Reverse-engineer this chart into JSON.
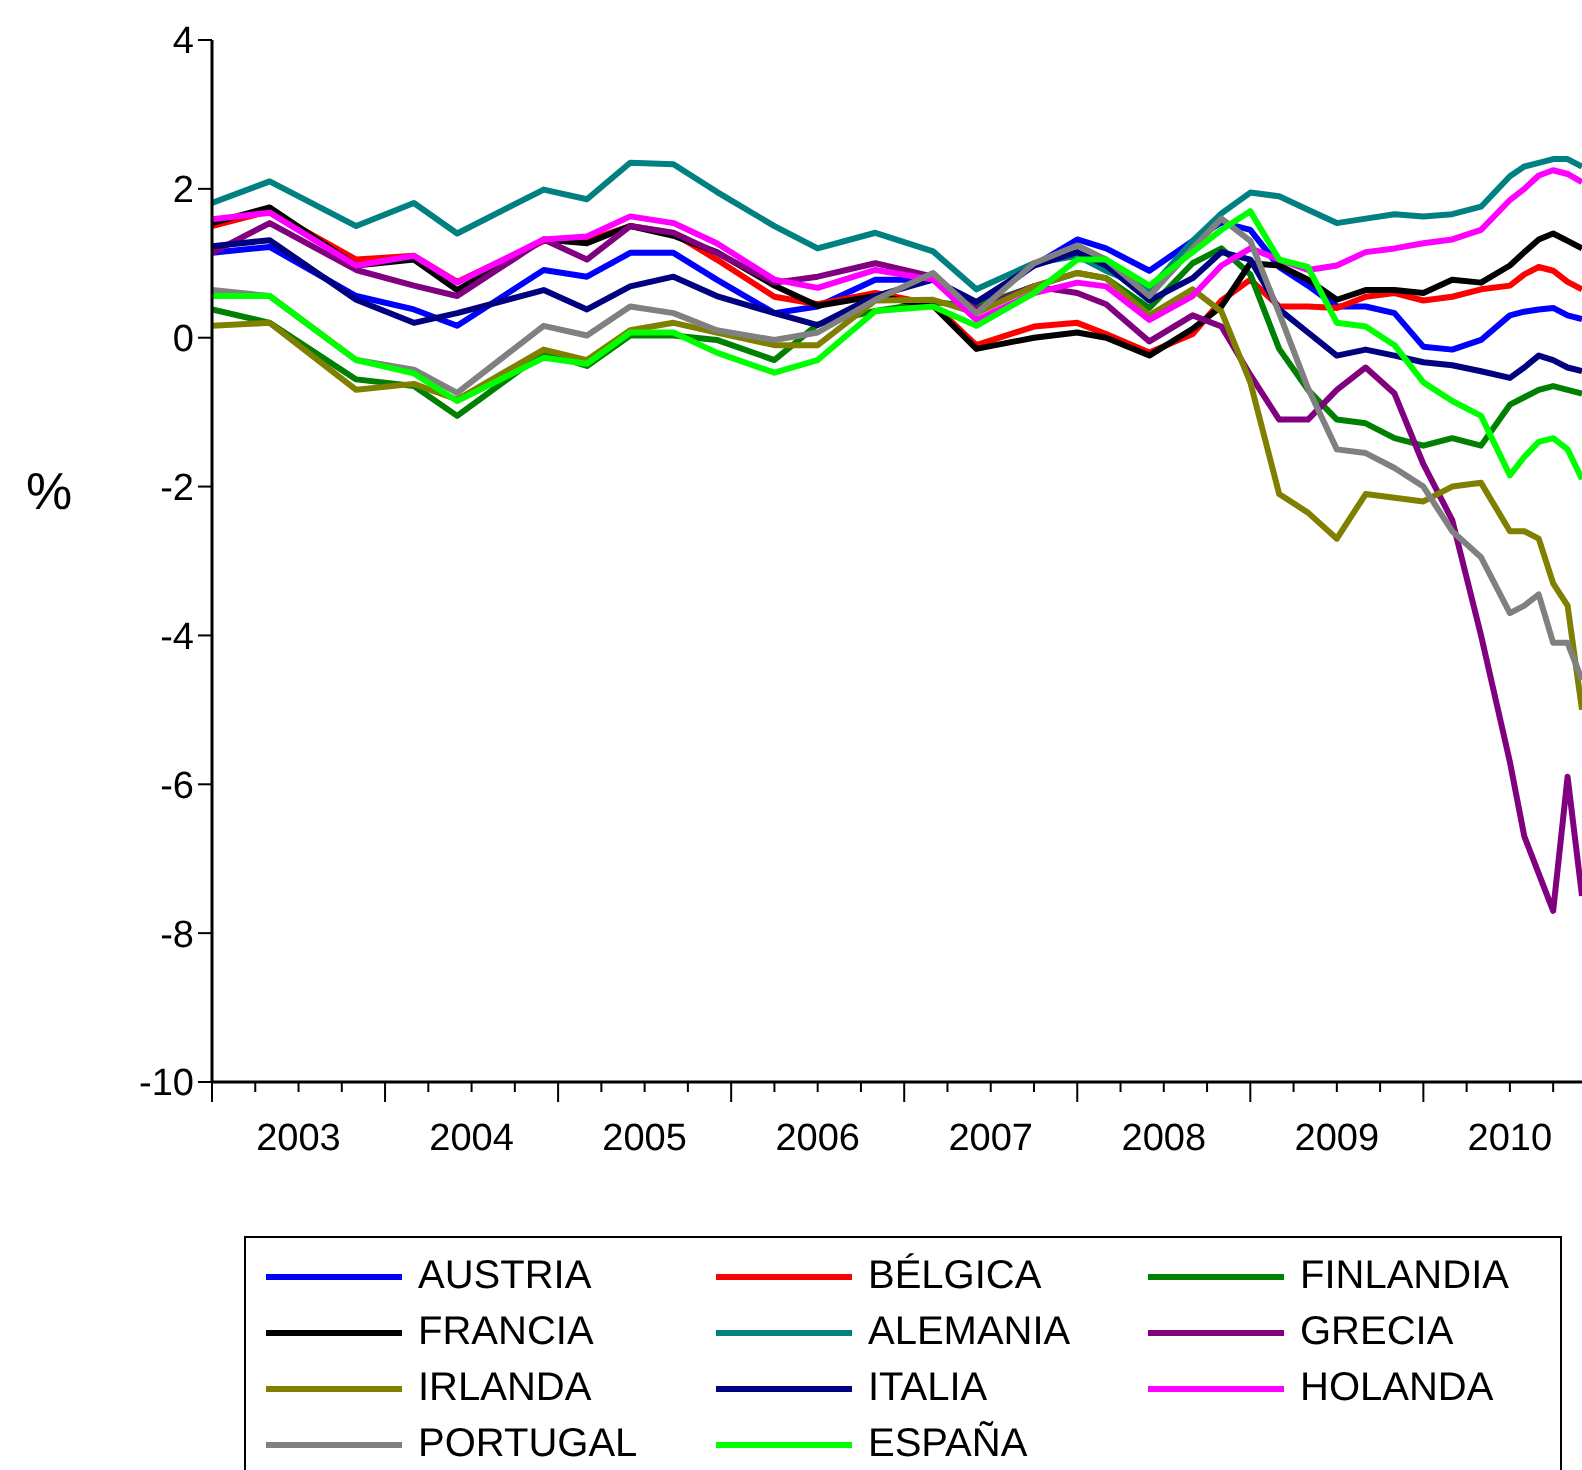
{
  "chart_data": {
    "type": "line",
    "ylabel": "%",
    "x": [
      "2003-01",
      "2003-05",
      "2003-11",
      "2004-03",
      "2004-06",
      "2004-12",
      "2005-03",
      "2005-06",
      "2005-09",
      "2005-12",
      "2006-04",
      "2006-07",
      "2006-11",
      "2007-03",
      "2007-06",
      "2007-10",
      "2008-01",
      "2008-03",
      "2008-06",
      "2008-09",
      "2008-11",
      "2009-01",
      "2009-03",
      "2009-05",
      "2009-07",
      "2009-09",
      "2009-11",
      "2010-01",
      "2010-03",
      "2010-05",
      "2010-07",
      "2010-08",
      "2010-09",
      "2010-10",
      "2010-11",
      "2010-12"
    ],
    "series": [
      {
        "name": "AUSTRIA",
        "color": "#0000ff",
        "values": [
          1.14,
          1.22,
          0.56,
          0.38,
          0.16,
          0.91,
          0.82,
          1.14,
          1.14,
          0.78,
          0.33,
          0.42,
          0.78,
          0.78,
          0.42,
          0.97,
          1.32,
          1.2,
          0.9,
          1.3,
          1.55,
          1.45,
          0.95,
          0.7,
          0.42,
          0.42,
          0.33,
          -0.12,
          -0.16,
          -0.03,
          0.3,
          0.35,
          0.38,
          0.4,
          0.3,
          0.25
        ]
      },
      {
        "name": "BÉLGICA",
        "color": "#ff0000",
        "values": [
          1.5,
          1.7,
          1.05,
          1.1,
          0.75,
          1.3,
          1.3,
          1.5,
          1.4,
          1.05,
          0.55,
          0.45,
          0.6,
          0.45,
          -0.1,
          0.15,
          0.2,
          0.05,
          -0.2,
          0.05,
          0.5,
          0.78,
          0.42,
          0.42,
          0.4,
          0.55,
          0.6,
          0.5,
          0.55,
          0.65,
          0.7,
          0.85,
          0.95,
          0.9,
          0.75,
          0.65
        ]
      },
      {
        "name": "FINLANDIA",
        "color": "#008000",
        "values": [
          0.38,
          0.2,
          -0.56,
          -0.65,
          -1.05,
          -0.2,
          -0.38,
          0.03,
          0.03,
          -0.03,
          -0.3,
          0.18,
          0.36,
          0.48,
          0.42,
          0.69,
          0.87,
          0.8,
          0.4,
          1.0,
          1.2,
          0.85,
          -0.15,
          -0.7,
          -1.1,
          -1.15,
          -1.35,
          -1.45,
          -1.35,
          -1.45,
          -0.9,
          -0.8,
          -0.7,
          -0.65,
          -0.7,
          -0.75
        ]
      },
      {
        "name": "FRANCIA",
        "color": "#000000",
        "values": [
          1.54,
          1.75,
          0.97,
          1.05,
          0.64,
          1.32,
          1.27,
          1.5,
          1.37,
          1.15,
          0.7,
          0.43,
          0.56,
          0.43,
          -0.15,
          0.0,
          0.07,
          0.0,
          -0.24,
          0.12,
          0.42,
          1.0,
          0.97,
          0.78,
          0.51,
          0.64,
          0.64,
          0.6,
          0.78,
          0.74,
          0.97,
          1.15,
          1.32,
          1.4,
          1.3,
          1.2
        ]
      },
      {
        "name": "ALEMANIA",
        "color": "#008080",
        "values": [
          1.81,
          2.1,
          1.5,
          1.81,
          1.4,
          1.99,
          1.86,
          2.35,
          2.33,
          1.96,
          1.5,
          1.2,
          1.41,
          1.16,
          0.65,
          1.0,
          1.1,
          0.9,
          0.65,
          1.3,
          1.67,
          1.95,
          1.9,
          1.72,
          1.54,
          1.6,
          1.66,
          1.63,
          1.66,
          1.76,
          2.17,
          2.3,
          2.35,
          2.4,
          2.4,
          2.3
        ]
      },
      {
        "name": "GRECIA",
        "color": "#800080",
        "values": [
          1.14,
          1.54,
          0.91,
          0.7,
          0.56,
          1.32,
          1.05,
          1.5,
          1.41,
          1.14,
          0.74,
          0.82,
          1.0,
          0.82,
          0.38,
          0.69,
          0.6,
          0.45,
          -0.05,
          0.3,
          0.15,
          -0.5,
          -1.1,
          -1.1,
          -0.7,
          -0.4,
          -0.75,
          -1.7,
          -2.45,
          -4.0,
          -5.7,
          -6.7,
          -7.2,
          -7.7,
          -5.9,
          -7.5
        ]
      },
      {
        "name": "IRLANDA",
        "color": "#808000",
        "values": [
          0.16,
          0.2,
          -0.7,
          -0.62,
          -0.83,
          -0.16,
          -0.3,
          0.1,
          0.2,
          0.07,
          -0.1,
          -0.1,
          0.5,
          0.51,
          0.33,
          0.69,
          0.87,
          0.8,
          0.3,
          0.65,
          0.35,
          -0.6,
          -2.1,
          -2.35,
          -2.7,
          -2.1,
          -2.15,
          -2.2,
          -2.0,
          -1.95,
          -2.6,
          -2.6,
          -2.7,
          -3.3,
          -3.6,
          -5.0
        ]
      },
      {
        "name": "ITALIA",
        "color": "#000080",
        "values": [
          1.23,
          1.31,
          0.51,
          0.2,
          0.33,
          0.64,
          0.38,
          0.69,
          0.82,
          0.56,
          0.33,
          0.17,
          0.56,
          0.78,
          0.48,
          0.97,
          1.15,
          0.97,
          0.5,
          0.8,
          1.15,
          1.05,
          0.38,
          0.07,
          -0.24,
          -0.16,
          -0.24,
          -0.33,
          -0.37,
          -0.45,
          -0.54,
          -0.4,
          -0.24,
          -0.3,
          -0.4,
          -0.45
        ]
      },
      {
        "name": "HOLANDA",
        "color": "#ff00ff",
        "values": [
          1.59,
          1.68,
          0.97,
          1.1,
          0.74,
          1.32,
          1.36,
          1.63,
          1.54,
          1.27,
          0.78,
          0.67,
          0.91,
          0.78,
          0.24,
          0.6,
          0.74,
          0.69,
          0.24,
          0.56,
          0.97,
          1.2,
          1.05,
          0.91,
          0.97,
          1.15,
          1.2,
          1.27,
          1.32,
          1.45,
          1.85,
          2.0,
          2.18,
          2.25,
          2.2,
          2.09
        ]
      },
      {
        "name": "PORTUGAL",
        "color": "#808080",
        "values": [
          0.64,
          0.56,
          -0.3,
          -0.43,
          -0.74,
          0.16,
          0.03,
          0.42,
          0.33,
          0.1,
          -0.03,
          0.07,
          0.51,
          0.87,
          0.33,
          1.0,
          1.24,
          1.05,
          0.56,
          1.2,
          1.6,
          1.3,
          0.33,
          -0.68,
          -1.5,
          -1.55,
          -1.75,
          -2.0,
          -2.6,
          -2.95,
          -3.7,
          -3.6,
          -3.45,
          -4.1,
          -4.1,
          -4.6
        ]
      },
      {
        "name": "ESPAÑA",
        "color": "#00ff00",
        "values": [
          0.56,
          0.56,
          -0.3,
          -0.48,
          -0.85,
          -0.27,
          -0.35,
          0.07,
          0.07,
          -0.2,
          -0.47,
          -0.3,
          0.36,
          0.42,
          0.16,
          0.6,
          1.05,
          1.05,
          0.7,
          1.15,
          1.45,
          1.7,
          1.05,
          0.95,
          0.2,
          0.15,
          -0.1,
          -0.6,
          -0.85,
          -1.05,
          -1.85,
          -1.6,
          -1.4,
          -1.35,
          -1.5,
          -1.9
        ]
      }
    ],
    "xlim": [
      "2003-01",
      "2010-12"
    ],
    "xticks": [
      {
        "value": "2003-01",
        "label": null
      },
      {
        "value": "2003-04",
        "label": null
      },
      {
        "value": "2003-07",
        "label": "2003"
      },
      {
        "value": "2003-10",
        "label": null
      },
      {
        "value": "2004-01",
        "label": null
      },
      {
        "value": "2004-04",
        "label": null
      },
      {
        "value": "2004-07",
        "label": "2004"
      },
      {
        "value": "2004-10",
        "label": null
      },
      {
        "value": "2005-01",
        "label": null
      },
      {
        "value": "2005-04",
        "label": null
      },
      {
        "value": "2005-07",
        "label": "2005"
      },
      {
        "value": "2005-10",
        "label": null
      },
      {
        "value": "2006-01",
        "label": null
      },
      {
        "value": "2006-04",
        "label": null
      },
      {
        "value": "2006-07",
        "label": "2006"
      },
      {
        "value": "2006-10",
        "label": null
      },
      {
        "value": "2007-01",
        "label": null
      },
      {
        "value": "2007-04",
        "label": null
      },
      {
        "value": "2007-07",
        "label": "2007"
      },
      {
        "value": "2007-10",
        "label": null
      },
      {
        "value": "2008-01",
        "label": null
      },
      {
        "value": "2008-04",
        "label": null
      },
      {
        "value": "2008-07",
        "label": "2008"
      },
      {
        "value": "2008-10",
        "label": null
      },
      {
        "value": "2009-01",
        "label": null
      },
      {
        "value": "2009-04",
        "label": null
      },
      {
        "value": "2009-07",
        "label": "2009"
      },
      {
        "value": "2009-10",
        "label": null
      },
      {
        "value": "2010-01",
        "label": null
      },
      {
        "value": "2010-04",
        "label": null
      },
      {
        "value": "2010-07",
        "label": "2010"
      },
      {
        "value": "2010-10",
        "label": null
      }
    ],
    "ylim": [
      -10,
      4
    ],
    "yticks": [
      -10,
      -8,
      -6,
      -4,
      -2,
      0,
      2,
      4
    ],
    "legend": "bottom"
  }
}
